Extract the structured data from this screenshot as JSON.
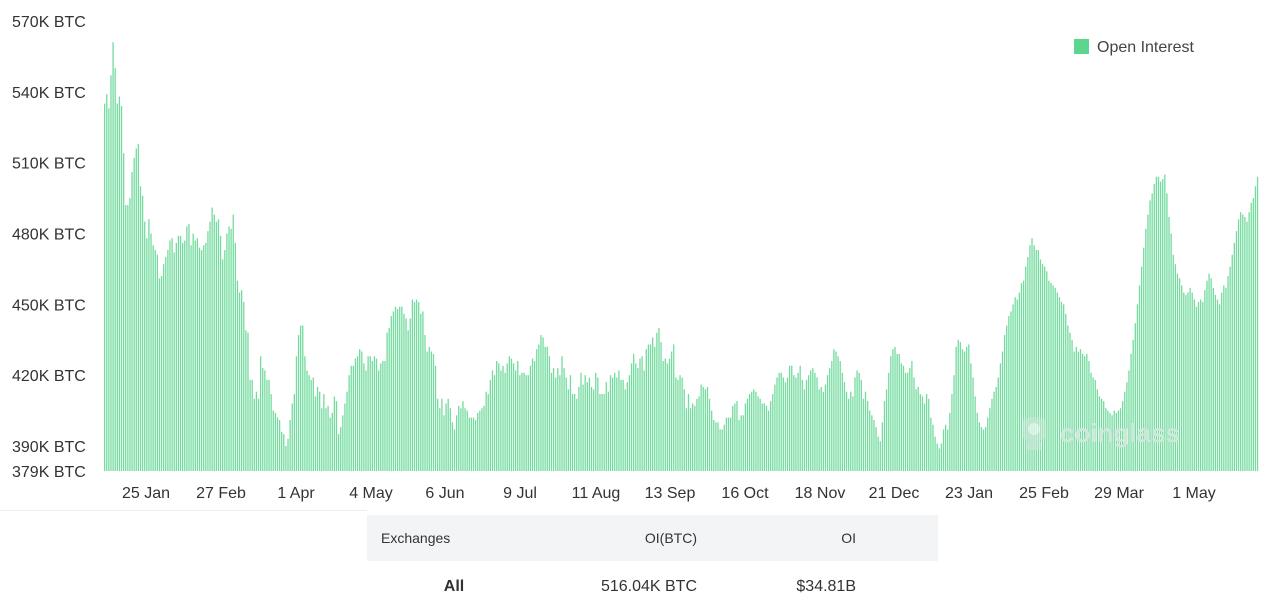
{
  "chart_data": {
    "type": "bar",
    "series": [
      {
        "name": "Open Interest",
        "color": "#5cd58e",
        "values": [
          535,
          539,
          533,
          547,
          561,
          550,
          535,
          538,
          534,
          514,
          492,
          492,
          495,
          506,
          512,
          516,
          518,
          500,
          496,
          485,
          478,
          486,
          480,
          475,
          473,
          471,
          461,
          462,
          467,
          470,
          473,
          477,
          478,
          472,
          476,
          479,
          479,
          476,
          477,
          483,
          484,
          475,
          480,
          477,
          478,
          474,
          473,
          475,
          476,
          481,
          485,
          491,
          488,
          485,
          486,
          479,
          469,
          473,
          480,
          483,
          482,
          488,
          476,
          460,
          455,
          456,
          451,
          439,
          438,
          418,
          418,
          410,
          413,
          410,
          428,
          423,
          422,
          418,
          418,
          412,
          405,
          404,
          402,
          401,
          396,
          395,
          390,
          393,
          401,
          408,
          412,
          428,
          437,
          441,
          441,
          428,
          422,
          420,
          418,
          419,
          411,
          415,
          413,
          406,
          412,
          406,
          407,
          402,
          404,
          411,
          409,
          395,
          398,
          403,
          408,
          413,
          420,
          424,
          424,
          427,
          428,
          431,
          430,
          425,
          422,
          428,
          428,
          426,
          428,
          427,
          422,
          425,
          426,
          426,
          438,
          440,
          445,
          447,
          449,
          448,
          449,
          449,
          446,
          444,
          439,
          444,
          452,
          451,
          452,
          451,
          446,
          447,
          437,
          430,
          432,
          430,
          429,
          424,
          410,
          406,
          410,
          403,
          408,
          410,
          406,
          400,
          397,
          403,
          407,
          406,
          409,
          406,
          405,
          402,
          402,
          402,
          401,
          404,
          405,
          406,
          407,
          413,
          412,
          418,
          422,
          420,
          426,
          425,
          422,
          424,
          421,
          425,
          428,
          427,
          425,
          422,
          426,
          420,
          421,
          421,
          420,
          420,
          424,
          427,
          426,
          431,
          433,
          437,
          436,
          432,
          432,
          428,
          421,
          423,
          419,
          423,
          420,
          428,
          423,
          419,
          414,
          420,
          412,
          412,
          410,
          415,
          421,
          416,
          420,
          417,
          419,
          415,
          414,
          421,
          419,
          412,
          412,
          412,
          417,
          413,
          420,
          419,
          421,
          419,
          422,
          418,
          418,
          414,
          417,
          420,
          425,
          429,
          425,
          423,
          427,
          428,
          422,
          431,
          433,
          433,
          436,
          432,
          438,
          440,
          434,
          426,
          427,
          425,
          427,
          430,
          433,
          419,
          418,
          420,
          419,
          414,
          406,
          412,
          406,
          408,
          407,
          410,
          411,
          416,
          415,
          414,
          415,
          410,
          405,
          401,
          400,
          400,
          397,
          397,
          399,
          402,
          402,
          402,
          407,
          408,
          409,
          401,
          403,
          403,
          408,
          410,
          412,
          413,
          414,
          413,
          411,
          410,
          408,
          408,
          407,
          405,
          409,
          412,
          416,
          419,
          421,
          421,
          419,
          417,
          419,
          424,
          424,
          420,
          419,
          421,
          424,
          418,
          414,
          418,
          420,
          422,
          423,
          421,
          419,
          414,
          415,
          413,
          416,
          420,
          423,
          426,
          431,
          430,
          428,
          426,
          421,
          417,
          413,
          410,
          413,
          411,
          419,
          422,
          421,
          418,
          410,
          413,
          409,
          405,
          403,
          401,
          398,
          394,
          392,
          400,
          409,
          414,
          421,
          428,
          431,
          432,
          429,
          429,
          425,
          424,
          421,
          421,
          423,
          426,
          419,
          414,
          415,
          412,
          411,
          408,
          412,
          410,
          402,
          399,
          394,
          391,
          389,
          391,
          397,
          399,
          397,
          404,
          412,
          420,
          432,
          435,
          434,
          431,
          430,
          432,
          433,
          425,
          419,
          411,
          404,
          400,
          398,
          397,
          398,
          402,
          406,
          410,
          413,
          415,
          419,
          425,
          430,
          437,
          441,
          445,
          447,
          450,
          453,
          452,
          455,
          459,
          460,
          466,
          470,
          475,
          478,
          475,
          473,
          473,
          469,
          467,
          466,
          464,
          460,
          459,
          458,
          457,
          455,
          453,
          451,
          450,
          446,
          441,
          438,
          435,
          430,
          432,
          430,
          431,
          429,
          428,
          429,
          426,
          421,
          419,
          418,
          414,
          411,
          410,
          409,
          406,
          405,
          404,
          403,
          405,
          404,
          405,
          406,
          409,
          413,
          417,
          422,
          429,
          435,
          442,
          450,
          458,
          466,
          474,
          482,
          488,
          494,
          497,
          501,
          504,
          504,
          502,
          503,
          505,
          497,
          487,
          480,
          471,
          467,
          463,
          461,
          458,
          455,
          454,
          455,
          457,
          455,
          452,
          449,
          451,
          452,
          451,
          456,
          460,
          463,
          461,
          457,
          454,
          452,
          450,
          455,
          458,
          457,
          462,
          466,
          471,
          476,
          481,
          486,
          489,
          488,
          487,
          485,
          489,
          493,
          495,
          500,
          504
        ]
      }
    ],
    "x_tick_labels": [
      "25 Jan",
      "27 Feb",
      "1 Apr",
      "4 May",
      "6 Jun",
      "9 Jul",
      "11 Aug",
      "13 Sep",
      "16 Oct",
      "18 Nov",
      "21 Dec",
      "23 Jan",
      "25 Feb",
      "29 Mar",
      "1 May"
    ],
    "y_tick_labels": [
      "570K BTC",
      "540K BTC",
      "510K BTC",
      "480K BTC",
      "450K BTC",
      "420K BTC",
      "390K BTC",
      "379K BTC"
    ],
    "y_ticks": [
      570,
      540,
      510,
      480,
      450,
      420,
      390,
      379
    ],
    "ylim": [
      379,
      570
    ],
    "unit": "K BTC",
    "legend": {
      "position": "top-right",
      "label": "Open Interest",
      "color": "#5cd58e"
    },
    "grid": false
  },
  "watermark": {
    "text": "coinglass"
  },
  "table": {
    "headers": [
      "Exchanges",
      "OI(BTC)",
      "OI"
    ],
    "rows": [
      {
        "exchange": "All",
        "oi_btc": "516.04K BTC",
        "oi_usd": "$34.81B"
      }
    ]
  }
}
